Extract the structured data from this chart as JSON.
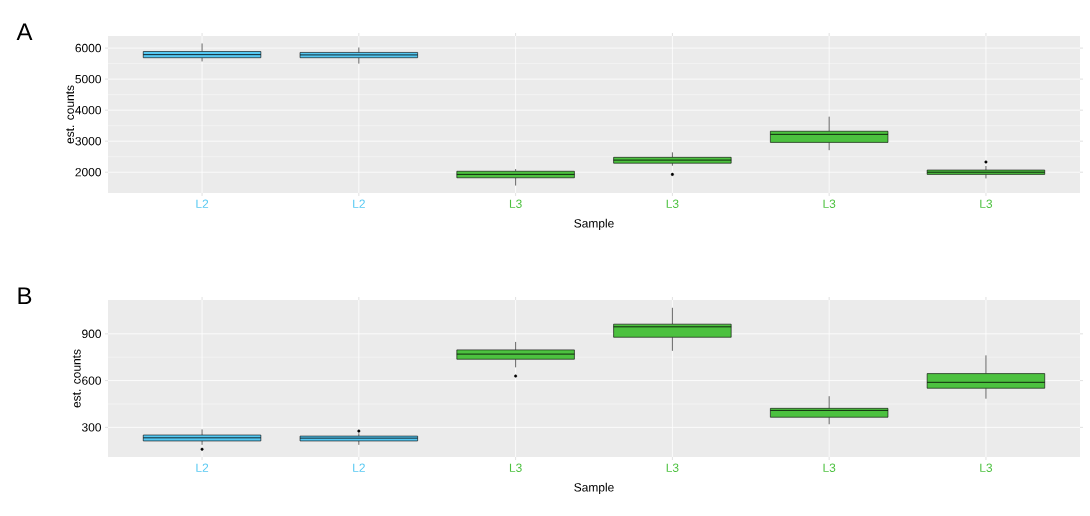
{
  "chart_data": [
    {
      "type": "box",
      "title": "A",
      "xlabel": "Sample",
      "ylabel": "est. counts",
      "categories": [
        "L2",
        "L2",
        "L3",
        "L3",
        "L3",
        "L3"
      ],
      "colors": [
        "#55c8f2",
        "#55c8f2",
        "#4cc13f",
        "#4cc13f",
        "#4cc13f",
        "#4cc13f"
      ],
      "boxes": [
        {
          "low": 5570,
          "q1": 5690,
          "median": 5790,
          "q3": 5890,
          "high": 6150
        },
        {
          "low": 5500,
          "q1": 5690,
          "median": 5780,
          "q3": 5860,
          "high": 6020
        },
        {
          "low": 1570,
          "q1": 1820,
          "median": 1930,
          "q3": 2030,
          "high": 2100
        },
        {
          "low": 2210,
          "q1": 2290,
          "median": 2390,
          "q3": 2480,
          "high": 2640,
          "outliers": [
            1930
          ]
        },
        {
          "low": 2710,
          "q1": 2960,
          "median": 3220,
          "q3": 3320,
          "high": 3790
        },
        {
          "low": 1800,
          "q1": 1930,
          "median": 2000,
          "q3": 2070,
          "high": 2200,
          "outliers": [
            2330
          ]
        }
      ],
      "ylim": [
        1330,
        6390
      ],
      "yticks": [
        2000,
        3000,
        4000,
        5000,
        6000
      ],
      "grid": true
    },
    {
      "type": "box",
      "title": "B",
      "xlabel": "Sample",
      "ylabel": "est. counts",
      "categories": [
        "L2",
        "L2",
        "L3",
        "L3",
        "L3",
        "L3"
      ],
      "colors": [
        "#55c8f2",
        "#55c8f2",
        "#4cc13f",
        "#4cc13f",
        "#4cc13f",
        "#4cc13f"
      ],
      "boxes": [
        {
          "low": 188,
          "q1": 213,
          "median": 233,
          "q3": 251,
          "high": 287,
          "outliers": [
            160
          ]
        },
        {
          "low": 188,
          "q1": 213,
          "median": 231,
          "q3": 244,
          "high": 262,
          "outliers": [
            276
          ]
        },
        {
          "low": 685,
          "q1": 737,
          "median": 770,
          "q3": 797,
          "high": 848,
          "outliers": [
            629
          ]
        },
        {
          "low": 791,
          "q1": 878,
          "median": 945,
          "q3": 962,
          "high": 1067
        },
        {
          "low": 320,
          "q1": 365,
          "median": 409,
          "q3": 422,
          "high": 500
        },
        {
          "low": 484,
          "q1": 551,
          "median": 589,
          "q3": 645,
          "high": 762
        }
      ],
      "ylim": [
        110,
        1117
      ],
      "yticks": [
        300,
        600,
        900
      ],
      "grid": true
    }
  ]
}
